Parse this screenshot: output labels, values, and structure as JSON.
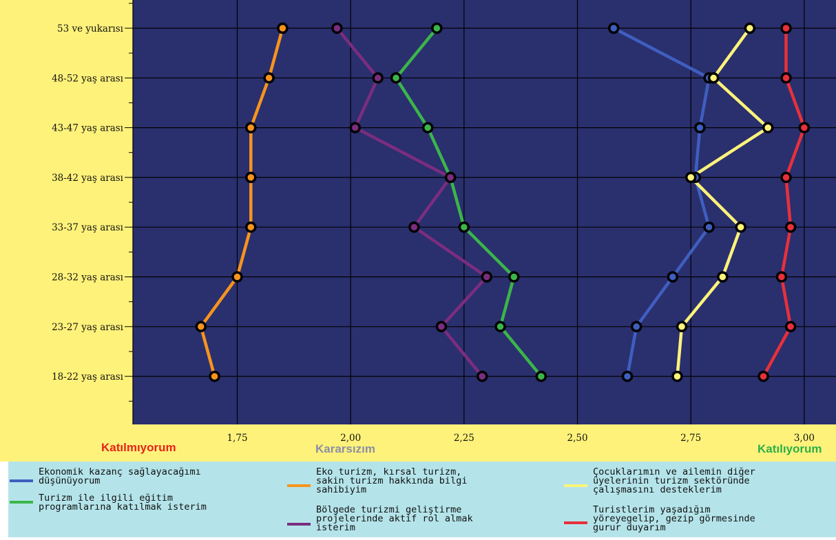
{
  "colors": {
    "background_left": "#fff27a",
    "plot_bg": "#2a2f6e",
    "legend_bg": "#b4e4ea"
  },
  "chart_data": {
    "type": "line",
    "orientation": "horizontal",
    "categories": [
      "53 ve yukarısı",
      "48-52 yaş arası",
      "43-47 yaş arası",
      "38-42 yaş arası",
      "33-37 yaş arası",
      "28-32 yaş arası",
      "23-27 yaş arası",
      "18-22 yaş arası"
    ],
    "xlim": [
      1.52,
      3.07
    ],
    "xticks": [
      1.75,
      2.0,
      2.25,
      2.5,
      2.75,
      3.0
    ],
    "xtick_labels": [
      "1,75",
      "2,00",
      "2,25",
      "2,50",
      "2,75",
      "3,00"
    ],
    "grid": true,
    "scale_labels": [
      {
        "text": "Katılmıyorum",
        "color": "#e8231c"
      },
      {
        "text": "Kararsızım",
        "color": "#8a8fa6"
      },
      {
        "text": "Katılıyorum",
        "color": "#2bb04a"
      }
    ],
    "series": [
      {
        "name": "Ekonomik kazanç sağlayacağımı düşünüyorum",
        "color": "#3f5fbf",
        "values": [
          2.58,
          2.79,
          2.77,
          2.76,
          2.79,
          2.71,
          2.63,
          2.61
        ]
      },
      {
        "name": "Eko turizm, kırsal turizm, sakin turizm hakkında bilgi sahibiyim",
        "color": "#f7941d",
        "values": [
          1.85,
          1.82,
          1.78,
          1.78,
          1.78,
          1.75,
          1.67,
          1.7
        ]
      },
      {
        "name": "Çocuklarımın ve ailemin diğer üyelerinin turizm sektöründe çalışmasını desteklerim",
        "color": "#fff37a",
        "values": [
          2.88,
          2.8,
          2.92,
          2.75,
          2.86,
          2.82,
          2.73,
          2.72
        ]
      },
      {
        "name": "Turizm ile ilgili eğitim programlarına katılmak isterim",
        "color": "#3bb54a",
        "values": [
          2.19,
          2.1,
          2.17,
          2.22,
          2.25,
          2.36,
          2.33,
          2.42
        ]
      },
      {
        "name": "Bölgede turizmi geliştirme projelerinde aktif rol almak isterim",
        "color": "#7b2d7f",
        "values": [
          1.97,
          2.06,
          2.01,
          2.22,
          2.14,
          2.3,
          2.2,
          2.29
        ]
      },
      {
        "name": "Turistlerim yaşadığım yöreyegelip, gezip görmesinde gurur duyarım",
        "color": "#e8303a",
        "values": [
          2.96,
          2.96,
          3.0,
          2.96,
          2.97,
          2.95,
          2.97,
          2.91
        ]
      }
    ]
  },
  "legend": [
    {
      "label": "Ekonomik kazanç sağlayacağımı\ndüşünüyorum"
    },
    {
      "label": "Turizm ile ilgili eğitim\nprogramlarına katılmak isterim"
    },
    {
      "label": "Eko turizm, kırsal turizm,\nsakin turizm hakkında bilgi\nsahibiyim"
    },
    {
      "label": "Bölgede turizmi geliştirme\nprojelerinde aktif rol almak\nisterim"
    },
    {
      "label": "Çocuklarımın ve ailemin diğer\nüyelerinin turizm sektöründe\nçalışmasını desteklerim"
    },
    {
      "label": "Turistlerim yaşadığım\nyöreyegelip, gezip görmesinde\ngurur duyarım"
    }
  ]
}
